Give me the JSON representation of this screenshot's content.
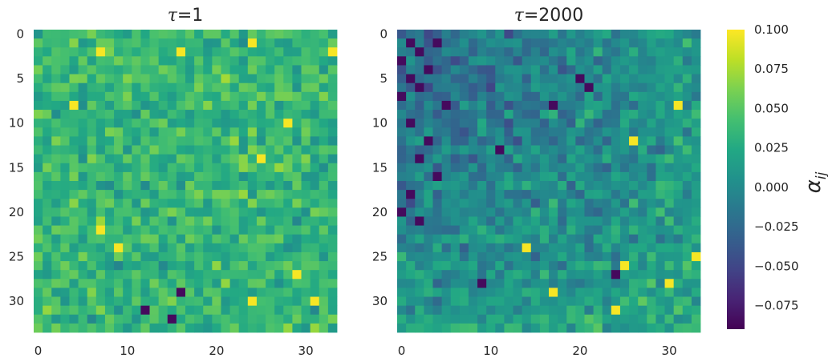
{
  "chart_data": [
    {
      "type": "heatmap",
      "title": "τ=1",
      "title_symbol": "τ",
      "title_value": "=1",
      "rows": 34,
      "cols": 34,
      "x_ticks": [
        "0",
        "10",
        "20",
        "30"
      ],
      "y_ticks": [
        "0",
        "5",
        "10",
        "15",
        "20",
        "25",
        "30"
      ],
      "value_mean": 0.035,
      "value_spread": 0.025,
      "bright_cells": [
        [
          1,
          24
        ],
        [
          2,
          7
        ],
        [
          2,
          16
        ],
        [
          2,
          33
        ],
        [
          8,
          4
        ],
        [
          10,
          28
        ],
        [
          14,
          25
        ],
        [
          22,
          7
        ],
        [
          24,
          9
        ],
        [
          27,
          29
        ],
        [
          30,
          24
        ],
        [
          30,
          31
        ]
      ],
      "dark_cells": [
        [
          29,
          16
        ],
        [
          31,
          12
        ],
        [
          32,
          15
        ]
      ]
    },
    {
      "type": "heatmap",
      "title": "τ=2000",
      "title_symbol": "τ",
      "title_value": "=2000",
      "rows": 34,
      "cols": 34,
      "x_ticks": [
        "0",
        "10",
        "20",
        "30"
      ],
      "y_ticks": [
        "0",
        "5",
        "10",
        "15",
        "20",
        "25",
        "30"
      ],
      "value_mean": 0.0,
      "value_spread": 0.025,
      "bright_cells": [
        [
          8,
          31
        ],
        [
          24,
          14
        ],
        [
          25,
          33
        ],
        [
          28,
          30
        ],
        [
          29,
          17
        ],
        [
          31,
          24
        ],
        [
          26,
          25
        ],
        [
          12,
          26
        ]
      ],
      "dark_cells": [
        [
          1,
          1
        ],
        [
          1,
          4
        ],
        [
          2,
          2
        ],
        [
          3,
          0
        ],
        [
          4,
          3
        ],
        [
          5,
          1
        ],
        [
          6,
          2
        ],
        [
          7,
          0
        ],
        [
          8,
          5
        ],
        [
          10,
          1
        ],
        [
          12,
          3
        ],
        [
          14,
          2
        ],
        [
          16,
          4
        ],
        [
          18,
          1
        ],
        [
          20,
          0
        ],
        [
          21,
          2
        ],
        [
          5,
          20
        ],
        [
          6,
          21
        ],
        [
          8,
          17
        ],
        [
          13,
          11
        ],
        [
          28,
          9
        ],
        [
          27,
          24
        ]
      ]
    }
  ],
  "colorbar": {
    "label": "α",
    "label_sub": "ij",
    "min": -0.09,
    "max": 0.1,
    "ticks": [
      "0.100",
      "0.075",
      "0.050",
      "0.025",
      "0.000",
      "−0.025",
      "−0.050",
      "−0.075"
    ],
    "tick_values": [
      0.1,
      0.075,
      0.05,
      0.025,
      0.0,
      -0.025,
      -0.05,
      -0.075
    ],
    "colormap": "viridis"
  }
}
